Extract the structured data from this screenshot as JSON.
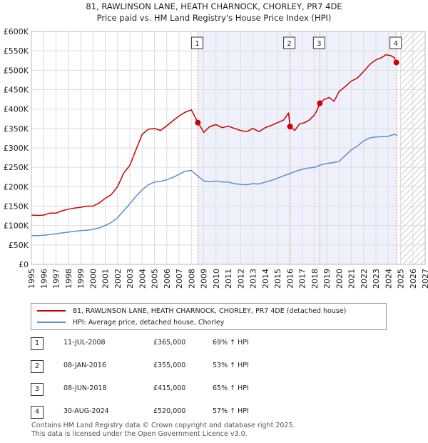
{
  "header": {
    "title": "81, RAWLINSON LANE, HEATH CHARNOCK, CHORLEY, PR7 4DE",
    "subtitle": "Price paid vs. HM Land Registry's House Price Index (HPI)"
  },
  "colors": {
    "property": "#cc0000",
    "hpi": "#5b8fcc",
    "shade": "#eef1fb",
    "grid": "#dddddd",
    "marker_line": "#e88888"
  },
  "chart_data": {
    "type": "line",
    "title": "81, RAWLINSON LANE, HEATH CHARNOCK, CHORLEY, PR7 4DE",
    "subtitle": "Price paid vs. HM Land Registry's House Price Index (HPI)",
    "xlim": [
      1995,
      2027
    ],
    "ylim": [
      0,
      600000
    ],
    "x_ticks": [
      "1995",
      "1996",
      "1997",
      "1998",
      "1999",
      "2000",
      "2001",
      "2002",
      "2003",
      "2004",
      "2005",
      "2006",
      "2007",
      "2008",
      "2009",
      "2010",
      "2011",
      "2012",
      "2013",
      "2014",
      "2015",
      "2016",
      "2017",
      "2018",
      "2019",
      "2020",
      "2021",
      "2022",
      "2023",
      "2024",
      "2025",
      "2026",
      "2027"
    ],
    "y_ticks": [
      "£0",
      "£50K",
      "£100K",
      "£150K",
      "£200K",
      "£250K",
      "£300K",
      "£350K",
      "£400K",
      "£450K",
      "£500K",
      "£550K",
      "£600K"
    ],
    "y_tick_values": [
      0,
      50000,
      100000,
      150000,
      200000,
      250000,
      300000,
      350000,
      400000,
      450000,
      500000,
      550000,
      600000
    ],
    "shaded_region": [
      2008.53,
      2024.66
    ],
    "hatched_region": [
      2025.0,
      2027.0
    ],
    "series": [
      {
        "name": "81, RAWLINSON LANE, HEATH CHARNOCK, CHORLEY, PR7 4DE (detached house)",
        "x": [
          1995.0,
          1995.5,
          1996.0,
          1996.5,
          1997.0,
          1997.5,
          1998.0,
          1998.5,
          1999.0,
          1999.5,
          2000.0,
          2000.5,
          2001.0,
          2001.5,
          2002.0,
          2002.5,
          2003.0,
          2003.5,
          2004.0,
          2004.5,
          2005.0,
          2005.5,
          2006.0,
          2006.5,
          2007.0,
          2007.5,
          2008.0,
          2008.3,
          2008.53,
          2008.8,
          2009.0,
          2009.5,
          2010.0,
          2010.5,
          2011.0,
          2011.5,
          2012.0,
          2012.5,
          2013.0,
          2013.5,
          2014.0,
          2014.5,
          2015.0,
          2015.5,
          2015.9,
          2016.02,
          2016.4,
          2016.8,
          2017.2,
          2017.6,
          2018.0,
          2018.2,
          2018.44,
          2018.8,
          2019.2,
          2019.6,
          2020.0,
          2020.5,
          2021.0,
          2021.5,
          2022.0,
          2022.5,
          2023.0,
          2023.5,
          2023.8,
          2024.2,
          2024.5,
          2024.66,
          2024.75
        ],
        "y": [
          127000,
          126000,
          127000,
          132000,
          132000,
          138000,
          142000,
          145000,
          147000,
          150000,
          150000,
          158000,
          170000,
          180000,
          200000,
          235000,
          255000,
          295000,
          335000,
          348000,
          350000,
          345000,
          357000,
          370000,
          382000,
          392000,
          398000,
          380000,
          365000,
          352000,
          340000,
          355000,
          360000,
          352000,
          356000,
          350000,
          345000,
          342000,
          350000,
          342000,
          352000,
          358000,
          365000,
          372000,
          390000,
          355000,
          345000,
          362000,
          365000,
          372000,
          385000,
          396000,
          415000,
          425000,
          430000,
          420000,
          445000,
          458000,
          472000,
          480000,
          497000,
          515000,
          527000,
          533000,
          540000,
          538000,
          532000,
          520000,
          522000
        ],
        "color": "#cc0000"
      },
      {
        "name": "HPI: Average price, detached house, Chorley",
        "x": [
          1995.0,
          1995.5,
          1996.0,
          1996.5,
          1997.0,
          1997.5,
          1998.0,
          1998.5,
          1999.0,
          1999.5,
          2000.0,
          2000.5,
          2001.0,
          2001.5,
          2002.0,
          2002.5,
          2003.0,
          2003.5,
          2004.0,
          2004.5,
          2005.0,
          2005.5,
          2006.0,
          2006.5,
          2007.0,
          2007.5,
          2008.0,
          2008.5,
          2009.0,
          2009.5,
          2010.0,
          2010.5,
          2011.0,
          2011.5,
          2012.0,
          2012.5,
          2013.0,
          2013.5,
          2014.0,
          2014.5,
          2015.0,
          2015.5,
          2016.0,
          2016.5,
          2017.0,
          2017.5,
          2018.0,
          2018.5,
          2019.0,
          2019.5,
          2020.0,
          2020.5,
          2021.0,
          2021.5,
          2022.0,
          2022.5,
          2023.0,
          2023.5,
          2024.0,
          2024.5,
          2024.75
        ],
        "y": [
          74000,
          74000,
          75000,
          77000,
          79000,
          81000,
          83000,
          85000,
          87000,
          88000,
          90000,
          94000,
          100000,
          108000,
          120000,
          138000,
          156000,
          175000,
          192000,
          205000,
          212000,
          214000,
          218000,
          224000,
          232000,
          240000,
          242000,
          228000,
          215000,
          213000,
          215000,
          212000,
          212000,
          208000,
          206000,
          205000,
          208000,
          207000,
          212000,
          216000,
          222000,
          228000,
          234000,
          240000,
          245000,
          248000,
          250000,
          256000,
          260000,
          262000,
          265000,
          280000,
          295000,
          305000,
          318000,
          326000,
          328000,
          329000,
          330000,
          335000,
          332000
        ],
        "color": "#5b8fcc"
      }
    ],
    "sales": [
      {
        "id": "1",
        "date": "11-JUL-2008",
        "x": 2008.53,
        "price": 365000
      },
      {
        "id": "2",
        "date": "08-JAN-2016",
        "x": 2016.02,
        "price": 355000
      },
      {
        "id": "3",
        "date": "08-JUN-2018",
        "x": 2018.44,
        "price": 415000
      },
      {
        "id": "4",
        "date": "30-AUG-2024",
        "x": 2024.66,
        "price": 520000
      }
    ]
  },
  "legend": {
    "property": "81, RAWLINSON LANE, HEATH CHARNOCK, CHORLEY, PR7 4DE (detached house)",
    "hpi": "HPI: Average price, detached house, Chorley"
  },
  "sales_table": [
    {
      "id": "1",
      "date": "11-JUL-2008",
      "price": "£365,000",
      "pct": "69% ↑ HPI"
    },
    {
      "id": "2",
      "date": "08-JAN-2016",
      "price": "£355,000",
      "pct": "53% ↑ HPI"
    },
    {
      "id": "3",
      "date": "08-JUN-2018",
      "price": "£415,000",
      "pct": "65% ↑ HPI"
    },
    {
      "id": "4",
      "date": "30-AUG-2024",
      "price": "£520,000",
      "pct": "57% ↑ HPI"
    }
  ],
  "footer": {
    "line1": "Contains HM Land Registry data © Crown copyright and database right 2025.",
    "line2": "This data is licensed under the Open Government Licence v3.0."
  }
}
